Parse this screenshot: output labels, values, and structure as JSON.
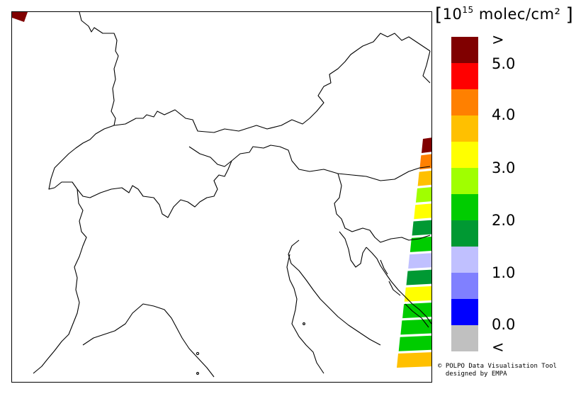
{
  "legend": {
    "title_prefix": "10",
    "title_exp": "15",
    "title_unit": " molec/cm²",
    "open_bracket": "[",
    "close_bracket": "]",
    "colors": [
      "#800000",
      "#ff0000",
      "#ff8000",
      "#ffc000",
      "#ffff00",
      "#a0ff00",
      "#00cc00",
      "#009933",
      "#c0c0ff",
      "#8080ff",
      "#0000ff",
      "#c0c0c0"
    ],
    "ticks": [
      ">",
      "5.0",
      "4.0",
      "3.0",
      "2.0",
      "1.0",
      "0.0",
      "<"
    ]
  },
  "credit": {
    "line1": "© POLPO Data Visualisation Tool",
    "line2": "  designed by EMPA"
  },
  "swath": {
    "colors": [
      "#800000",
      "#ff8000",
      "#ffc000",
      "#a0ff00",
      "#ffff00",
      "#009933",
      "#00cc00",
      "#c0c0ff",
      "#009933",
      "#ffff00",
      "#00cc00",
      "#00cc00",
      "#00cc00",
      "#ffc000"
    ]
  },
  "corner_pixel_color": "#800000"
}
